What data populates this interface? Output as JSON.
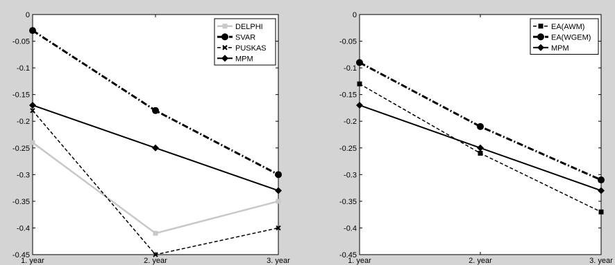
{
  "chart_data": [
    {
      "type": "line",
      "categories": [
        "1. year",
        "2. year",
        "3. year"
      ],
      "ylim": [
        -0.45,
        0
      ],
      "yticks": [
        "0",
        "-0.05",
        "-0.1",
        "-0.15",
        "-0.2",
        "-0.25",
        "-0.3",
        "-0.35",
        "-0.4",
        "-0.45"
      ],
      "grid": false,
      "legend_position": "top-right",
      "series": [
        {
          "name": "DELPHI",
          "values": [
            -0.24,
            -0.41,
            -0.35
          ],
          "color": "#c8c8c8",
          "dash": "solid",
          "marker": "square",
          "width": 2.5
        },
        {
          "name": "SVAR",
          "values": [
            -0.03,
            -0.18,
            -0.3
          ],
          "color": "#000000",
          "dash": "dashdot",
          "marker": "circle",
          "width": 3
        },
        {
          "name": "PUSKAS",
          "values": [
            -0.18,
            -0.45,
            -0.4
          ],
          "color": "#000000",
          "dash": "dashed",
          "marker": "x",
          "width": 1.5
        },
        {
          "name": "MPM",
          "values": [
            -0.17,
            -0.25,
            -0.33
          ],
          "color": "#000000",
          "dash": "solid",
          "marker": "diamond",
          "width": 2
        }
      ]
    },
    {
      "type": "line",
      "categories": [
        "1. year",
        "2. year",
        "3. year"
      ],
      "ylim": [
        -0.45,
        0
      ],
      "yticks": [
        "0",
        "-0.05",
        "-0.1",
        "-0.15",
        "-0.2",
        "-0.25",
        "-0.3",
        "-0.35",
        "-0.4",
        "-0.45"
      ],
      "grid": false,
      "legend_position": "top-right",
      "series": [
        {
          "name": "EA(AWM)",
          "values": [
            -0.13,
            -0.26,
            -0.37
          ],
          "color": "#000000",
          "dash": "dashed",
          "marker": "square",
          "width": 1.5
        },
        {
          "name": "EA(WGEM)",
          "values": [
            -0.09,
            -0.21,
            -0.31
          ],
          "color": "#000000",
          "dash": "dashdot",
          "marker": "circle",
          "width": 3
        },
        {
          "name": "MPM",
          "values": [
            -0.17,
            -0.25,
            -0.33
          ],
          "color": "#000000",
          "dash": "solid",
          "marker": "diamond",
          "width": 2
        }
      ]
    }
  ]
}
